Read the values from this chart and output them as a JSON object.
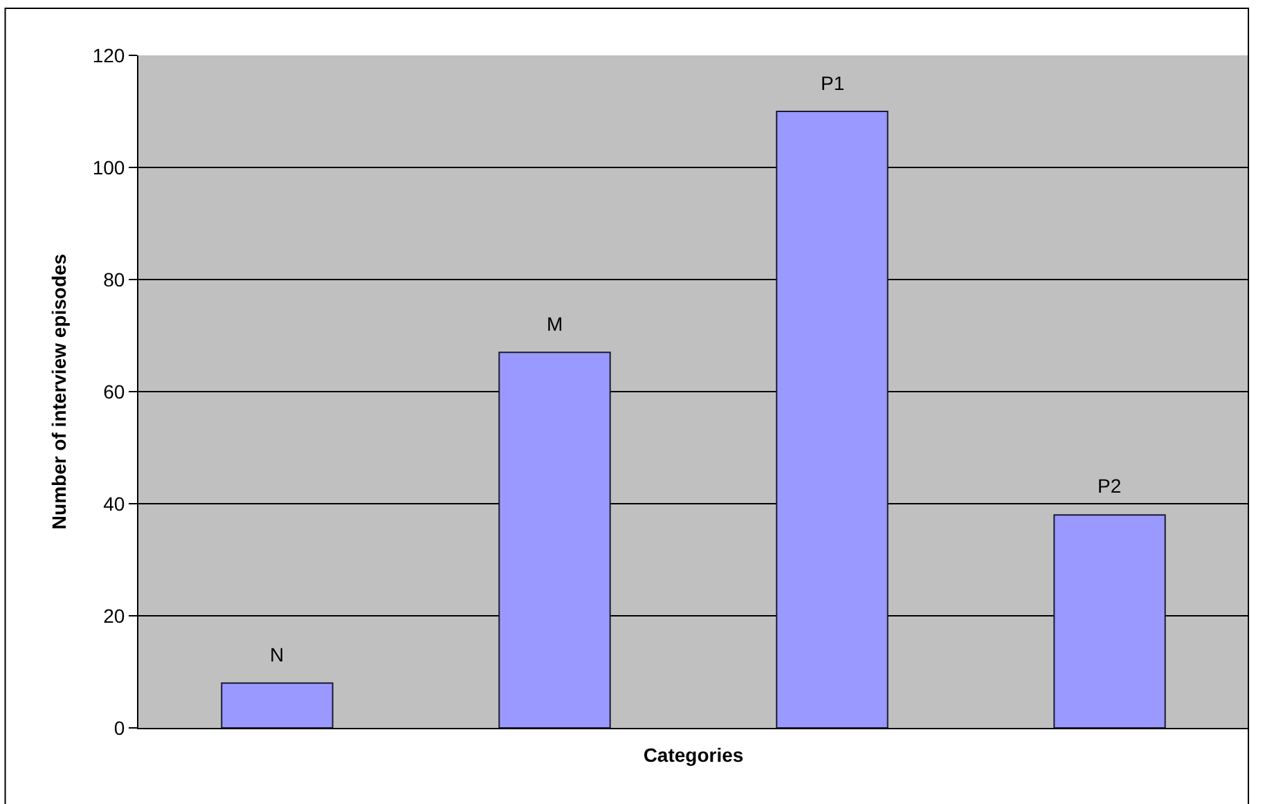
{
  "chart_data": {
    "type": "bar",
    "xlabel": "Categories",
    "ylabel": "Number of interview episodes",
    "categories": [
      "N",
      "M",
      "P1",
      "P2"
    ],
    "values": [
      8,
      67,
      110,
      38
    ],
    "color": "#9999ff",
    "ylim": [
      0,
      120
    ],
    "yticks": [
      0,
      20,
      40,
      60,
      80,
      100,
      120
    ],
    "grid": "y",
    "tick_labels": "y"
  }
}
